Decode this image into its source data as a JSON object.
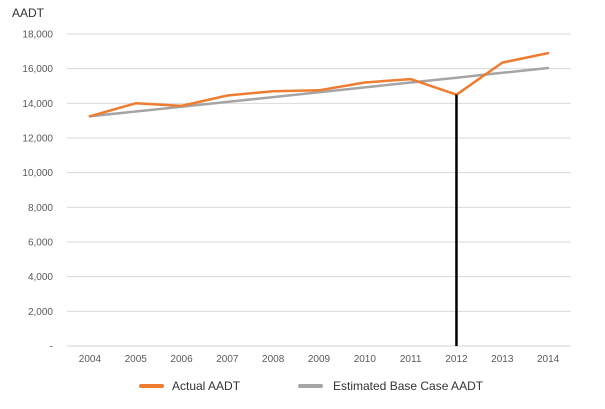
{
  "chart_data": {
    "type": "line",
    "ylabel": "AADT",
    "x": [
      "2004",
      "2005",
      "2006",
      "2007",
      "2008",
      "2009",
      "2010",
      "2011",
      "2012",
      "2013",
      "2014"
    ],
    "ylim": [
      0,
      18000
    ],
    "yticks": [
      0,
      2000,
      4000,
      6000,
      8000,
      10000,
      12000,
      14000,
      16000,
      18000
    ],
    "ytick_labels": [
      "-",
      "2,000",
      "4,000",
      "6,000",
      "8,000",
      "10,000",
      "12,000",
      "14,000",
      "16,000",
      "18,000"
    ],
    "grid": true,
    "legend_position": "bottom",
    "series": [
      {
        "name": "Actual AADT",
        "color": "#ED7D31",
        "values": [
          13250,
          14000,
          13850,
          14450,
          14700,
          14750,
          15200,
          15400,
          14500,
          16350,
          16900
        ]
      },
      {
        "name": "Estimated Base Case AADT",
        "color": "#A5A5A5",
        "values": [
          13250,
          13530,
          13800,
          14080,
          14360,
          14640,
          14920,
          15200,
          15480,
          15760,
          16040
        ]
      }
    ],
    "vertical_marker": {
      "x": "2012",
      "color": "#000000"
    }
  }
}
